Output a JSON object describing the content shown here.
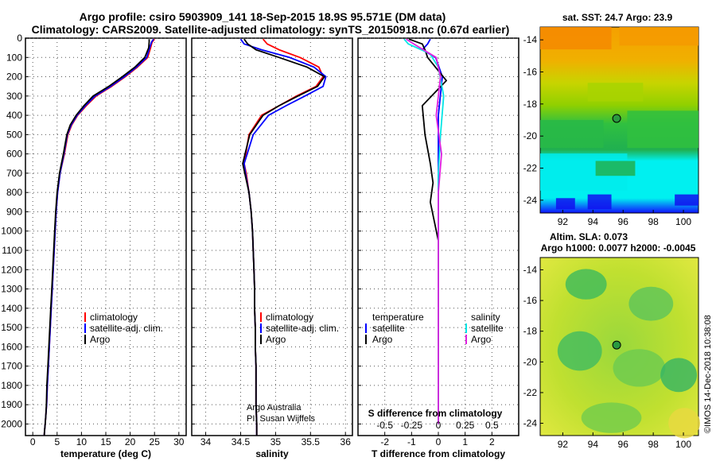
{
  "header": {
    "line1": "Argo profile: csiro 5903909_141 18-Sep-2015 18.9S 95.571E (DM data)",
    "line2": "Climatology: CARS2009. Satellite-adjusted climatology: synTS_20150918.nc (0.67d earlier)"
  },
  "colors": {
    "climatology": "#ff0000",
    "satellite": "#0000ff",
    "argo": "#000000",
    "temp_diff_sat": "#0000ff",
    "sal_diff_sat": "#00e5e5",
    "sal_diff_argo": "#e020e0"
  },
  "depth_ticks": [
    "0",
    "100",
    "200",
    "300",
    "400",
    "500",
    "600",
    "700",
    "800",
    "900",
    "1000",
    "1100",
    "1200",
    "1300",
    "1400",
    "1500",
    "1600",
    "1700",
    "1800",
    "1900",
    "2000"
  ],
  "panels": {
    "temperature": {
      "xlabel": "temperature (deg C)",
      "xticks": [
        "0",
        "5",
        "10",
        "15",
        "20",
        "25",
        "30"
      ],
      "legend": [
        "climatology",
        "satellite-adj. clim.",
        "Argo"
      ]
    },
    "salinity": {
      "xlabel": "salinity",
      "xticks": [
        "34",
        "34.5",
        "35",
        "35.5",
        "36"
      ],
      "legend": [
        "climatology",
        "satellite-adj. clim.",
        "Argo"
      ],
      "credit1": "Argo Australia",
      "credit2": "PI: Susan Wijffels"
    },
    "difference": {
      "xlabel": "T difference from climatology",
      "xticks": [
        "-2",
        "-1",
        "0",
        "1",
        "2"
      ],
      "xticks_s": [
        "-0.5",
        "-0.25",
        "0",
        "0.25",
        "0.5"
      ],
      "s_label": "S difference from climatology",
      "legend_t_title": "temperature",
      "legend_s_title": "salinity",
      "legend_items": [
        "satellite",
        "Argo"
      ]
    }
  },
  "maps": {
    "sst_title": "sat. SST: 24.7 Argo: 23.9",
    "sla_title1": "Altim. SLA: 0.073",
    "sla_title2": "Argo h1000: 0.0077 h2000: -0.0045",
    "yticks": [
      "-14",
      "-16",
      "-18",
      "-20",
      "-22",
      "-24"
    ],
    "xticks": [
      "92",
      "94",
      "96",
      "98",
      "100"
    ],
    "float_lon": 95.571,
    "float_lat": -18.9
  },
  "watermark": "©IMOS 14-Dec-2018 10:38:08",
  "chart_data": [
    {
      "type": "line",
      "title": "",
      "xlabel": "temperature (deg C)",
      "ylabel": "",
      "xlim": [
        -1.5,
        31.5
      ],
      "ylim": [
        2060,
        0
      ],
      "series": [
        {
          "name": "climatology",
          "x": [
            25,
            24.5,
            24.2,
            23.6,
            21.5,
            19,
            16.2,
            13,
            11,
            9.2,
            8,
            7.2,
            6.5,
            5.6,
            5.1,
            4.8,
            4.6,
            4.4,
            4.2,
            4.0,
            3.8,
            3.6,
            3.4,
            3.2,
            3.0,
            2.85,
            2.7,
            2.55,
            2.4,
            2.35
          ],
          "y": [
            5,
            20,
            50,
            100,
            150,
            200,
            250,
            300,
            350,
            400,
            450,
            500,
            600,
            700,
            800,
            900,
            1000,
            1100,
            1200,
            1300,
            1400,
            1500,
            1600,
            1700,
            1800,
            1900,
            1950,
            2000,
            2040,
            2060
          ]
        },
        {
          "name": "satellite-adj. clim.",
          "x": [
            24.8,
            24.4,
            24.0,
            23.4,
            21.3,
            18.8,
            16.0,
            12.8,
            10.8,
            9.1,
            7.9,
            7.1,
            6.4,
            5.6,
            5.1,
            4.8,
            4.6,
            4.4,
            4.2,
            4.0,
            3.8,
            3.6,
            3.4,
            3.2,
            3.0,
            2.85,
            2.7,
            2.55,
            2.4,
            2.35
          ],
          "y": [
            5,
            20,
            50,
            100,
            150,
            200,
            250,
            300,
            350,
            400,
            450,
            500,
            600,
            700,
            800,
            900,
            1000,
            1100,
            1200,
            1300,
            1400,
            1500,
            1600,
            1700,
            1800,
            1900,
            1950,
            2000,
            2040,
            2060
          ]
        },
        {
          "name": "Argo",
          "x": [
            23.9,
            23.9,
            23.8,
            23.0,
            21.0,
            18.4,
            15.6,
            12.4,
            10.5,
            8.9,
            7.7,
            7.0,
            6.3,
            5.5,
            5.0,
            4.7,
            4.5,
            4.3,
            4.1,
            3.9,
            3.7,
            3.5,
            3.3,
            3.1,
            2.9,
            2.8,
            2.7,
            2.55,
            2.4,
            2.35
          ],
          "y": [
            5,
            20,
            50,
            100,
            150,
            200,
            250,
            300,
            350,
            400,
            450,
            500,
            600,
            700,
            800,
            900,
            1000,
            1100,
            1200,
            1300,
            1400,
            1500,
            1600,
            1700,
            1800,
            1900,
            1950,
            2000,
            2040,
            2060
          ]
        }
      ]
    },
    {
      "type": "line",
      "title": "",
      "xlabel": "salinity",
      "ylabel": "",
      "xlim": [
        33.8,
        36.1
      ],
      "ylim": [
        2060,
        0
      ],
      "series": [
        {
          "name": "climatology",
          "x": [
            34.82,
            34.88,
            35.05,
            35.35,
            35.62,
            35.68,
            35.58,
            35.3,
            35.05,
            34.8,
            34.62,
            34.55,
            34.58,
            34.62,
            34.65,
            34.67,
            34.68,
            34.69,
            34.7,
            34.7,
            34.71,
            34.71,
            34.72,
            34.72,
            34.72,
            34.73,
            34.73
          ],
          "y": [
            5,
            30,
            60,
            100,
            150,
            200,
            250,
            300,
            350,
            400,
            500,
            650,
            700,
            800,
            900,
            1000,
            1100,
            1200,
            1300,
            1400,
            1500,
            1600,
            1700,
            1800,
            1900,
            2000,
            2060
          ]
        },
        {
          "name": "satellite-adj. clim.",
          "x": [
            34.5,
            34.55,
            34.8,
            35.2,
            35.55,
            35.72,
            35.68,
            35.42,
            35.15,
            34.9,
            34.68,
            34.55,
            34.57,
            34.62,
            34.65,
            34.67,
            34.68,
            34.69,
            34.7,
            34.7,
            34.71,
            34.71,
            34.72,
            34.72,
            34.72,
            34.73,
            34.73
          ],
          "y": [
            5,
            30,
            60,
            100,
            150,
            200,
            250,
            300,
            350,
            400,
            500,
            650,
            700,
            800,
            900,
            1000,
            1100,
            1200,
            1300,
            1400,
            1500,
            1600,
            1700,
            1800,
            1900,
            2000,
            2060
          ]
        },
        {
          "name": "Argo",
          "x": [
            34.55,
            34.6,
            34.72,
            35.05,
            35.45,
            35.7,
            35.6,
            35.32,
            35.05,
            34.82,
            34.63,
            34.53,
            34.56,
            34.62,
            34.65,
            34.67,
            34.68,
            34.69,
            34.7,
            34.7,
            34.71,
            34.71,
            34.72,
            34.72,
            34.72,
            34.73,
            34.73
          ],
          "y": [
            5,
            30,
            60,
            100,
            150,
            200,
            250,
            300,
            350,
            400,
            500,
            650,
            700,
            800,
            900,
            1000,
            1100,
            1200,
            1300,
            1400,
            1500,
            1600,
            1700,
            1800,
            1900,
            2000,
            2060
          ]
        }
      ]
    },
    {
      "type": "line",
      "title": "",
      "xlabel": "T difference from climatology",
      "ylabel": "",
      "xlim": [
        -3,
        3
      ],
      "ylim": [
        2060,
        0
      ],
      "series": [
        {
          "name": "temperature satellite",
          "x": [
            -0.3,
            -0.4,
            -0.6,
            -0.1,
            0.15,
            0.0,
            0.0,
            0.0,
            0.0,
            0.0,
            0.0,
            0.0
          ],
          "y": [
            5,
            30,
            60,
            100,
            200,
            400,
            600,
            800,
            1000,
            1300,
            1600,
            2000
          ]
        },
        {
          "name": "temperature Argo",
          "x": [
            -1.1,
            -0.6,
            -0.5,
            -0.4,
            0.3,
            -0.6,
            -0.5,
            -0.3,
            -0.2,
            -0.3,
            0.0,
            0.0,
            0.0,
            0.0
          ],
          "y": [
            5,
            30,
            60,
            100,
            220,
            350,
            500,
            650,
            750,
            850,
            1050,
            1300,
            1600,
            2000
          ]
        },
        {
          "name": "salinity satellite",
          "x": [
            -0.32,
            -0.28,
            -0.08,
            0.0,
            0.05,
            0.02,
            0.0,
            0.0,
            0.0,
            0.0
          ],
          "y": [
            5,
            30,
            80,
            150,
            300,
            500,
            700,
            1000,
            1500,
            2000
          ]
        },
        {
          "name": "salinity Argo",
          "x": [
            -0.3,
            -0.2,
            -0.02,
            0.02,
            -0.02,
            0.03,
            0.0,
            0.0,
            0.0,
            0.0,
            0.0
          ],
          "y": [
            5,
            40,
            100,
            200,
            400,
            600,
            800,
            1000,
            1300,
            1600,
            2000
          ]
        }
      ]
    }
  ]
}
